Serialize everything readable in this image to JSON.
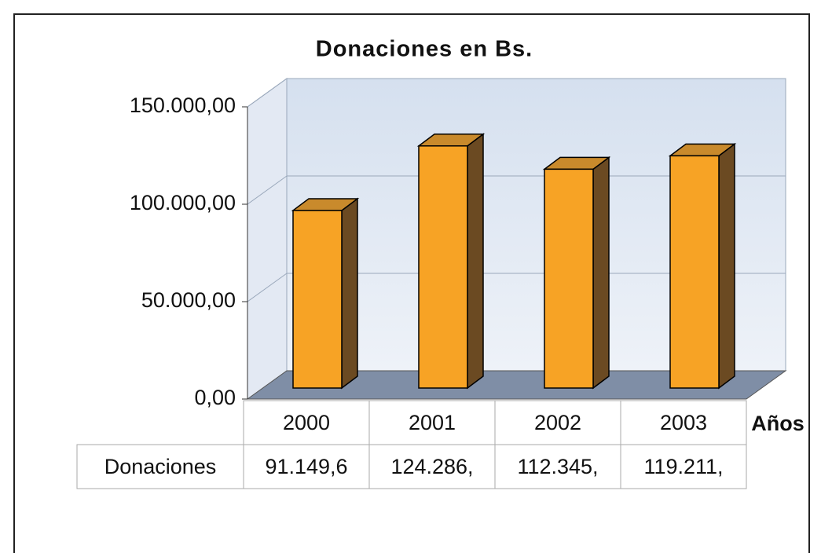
{
  "chart_data": {
    "type": "bar3d",
    "title": "Donaciones en Bs.",
    "categories": [
      "2000",
      "2001",
      "2002",
      "2003"
    ],
    "series": [
      {
        "name": "Donaciones",
        "color": "#f7a325",
        "values": [
          91149.6,
          124286,
          112345,
          119211
        ],
        "value_labels": [
          "91.149,6",
          "124.286,",
          "112.345,",
          "119.211,"
        ]
      }
    ],
    "x_label": "Años",
    "ylim": [
      0,
      150000
    ],
    "yticks": [
      {
        "value": 0,
        "label": "0,00"
      },
      {
        "value": 50000,
        "label": "50.000,00"
      },
      {
        "value": 100000,
        "label": "100.000,00"
      },
      {
        "value": 150000,
        "label": "150.000,00"
      }
    ],
    "grid": true,
    "data_table": true
  }
}
